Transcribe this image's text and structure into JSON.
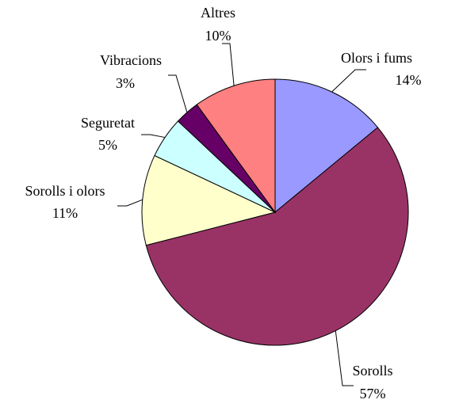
{
  "chart_data": {
    "type": "pie",
    "categories": [
      "Olors i fums",
      "Sorolls",
      "Sorolls i olors",
      "Seguretat",
      "Vibracions",
      "Altres"
    ],
    "values": [
      14,
      57,
      11,
      5,
      3,
      10
    ],
    "value_labels": [
      "14%",
      "57%",
      "11%",
      "5%",
      "3%",
      "10%"
    ],
    "colors": [
      "#9999ff",
      "#993366",
      "#ffffcc",
      "#ccffff",
      "#660066",
      "#ff8080"
    ]
  }
}
